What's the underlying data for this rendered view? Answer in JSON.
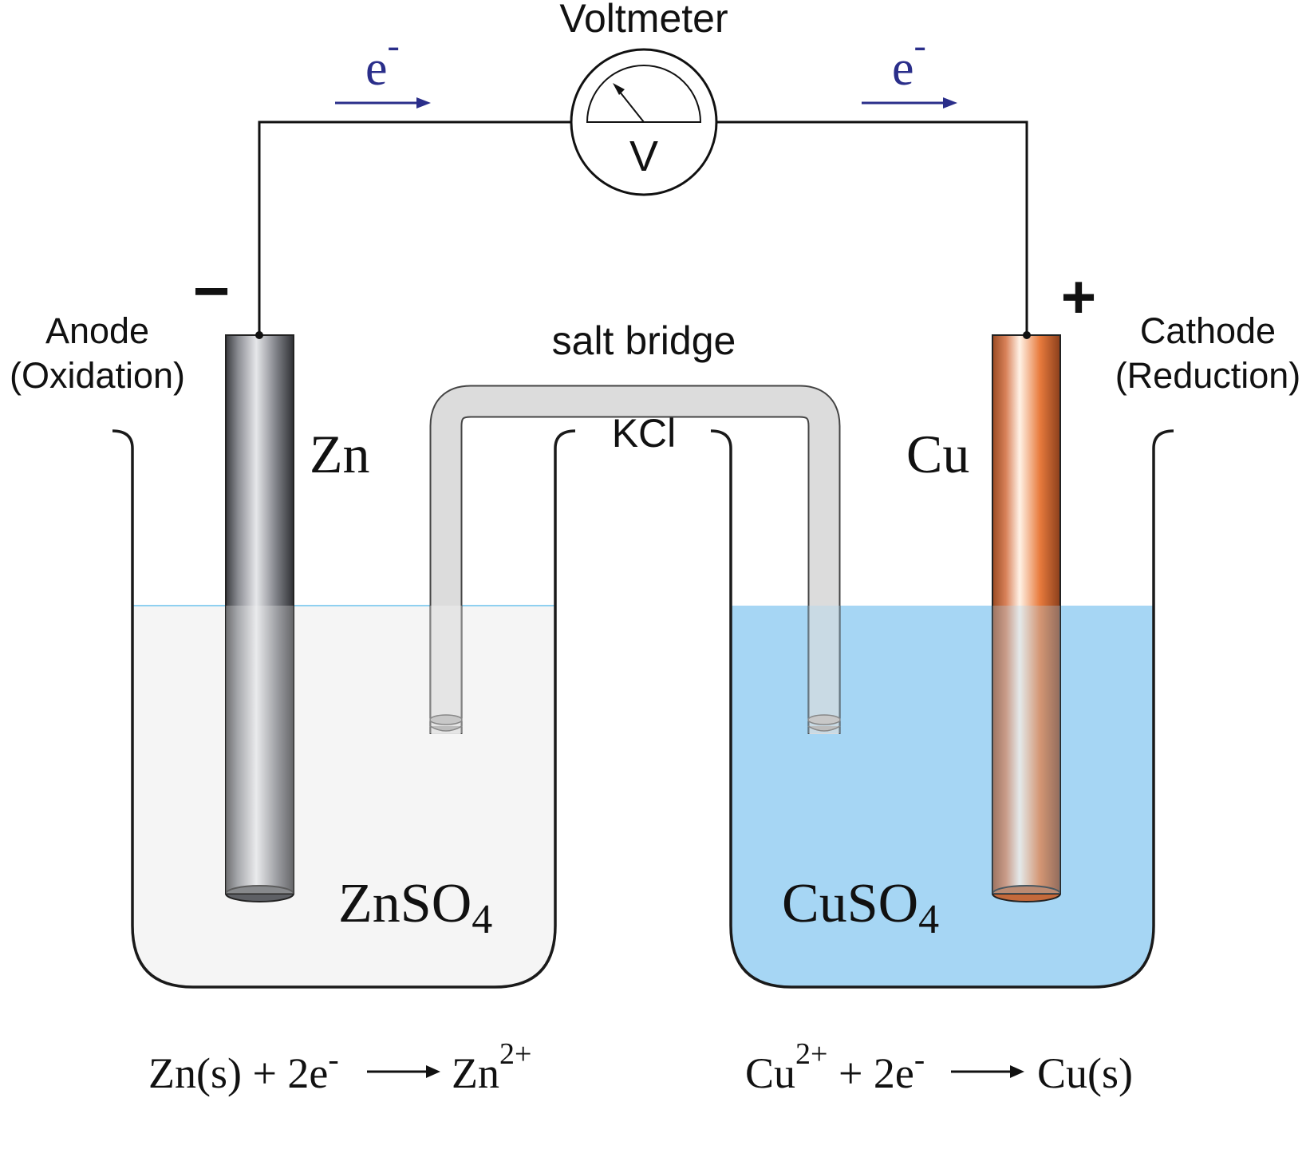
{
  "title": "Voltmeter",
  "meter_symbol": "V",
  "electron_left": {
    "base": "e",
    "sup": "-"
  },
  "electron_right": {
    "base": "e",
    "sup": "-"
  },
  "anode": {
    "sign": "−",
    "line1": "Anode",
    "line2": "(Oxidation)",
    "metal": "Zn",
    "solution": {
      "base": "ZnSO",
      "sub": "4"
    }
  },
  "cathode": {
    "sign": "+",
    "line1": "Cathode",
    "line2": "(Reduction)",
    "metal": "Cu",
    "solution": {
      "base": "CuSO",
      "sub": "4"
    }
  },
  "salt_bridge": {
    "label": "salt bridge",
    "content": "KCl"
  },
  "equation_left": {
    "lhs": "Zn(s) + 2e",
    "lhs_sup": "-",
    "product": "Zn",
    "product_sup": "2+"
  },
  "equation_right": {
    "species": "Cu",
    "species_sup": "2+",
    "mid": " + 2e",
    "mid_sup": "-",
    "product": "Cu(s)"
  },
  "colors": {
    "zinc_dark": "#3a3b3f",
    "zinc_light": "#e6e7ea",
    "copper_dark": "#9a4a22",
    "copper_light": "#fff2e6",
    "copper_accent": "#e87a3c",
    "cuso4": "#a6d6f4",
    "znso4": "#f5f5f5",
    "bridge": "#dcdcdc",
    "arrow": "#2a2e8a",
    "surface_line": "#8fd0f0"
  }
}
